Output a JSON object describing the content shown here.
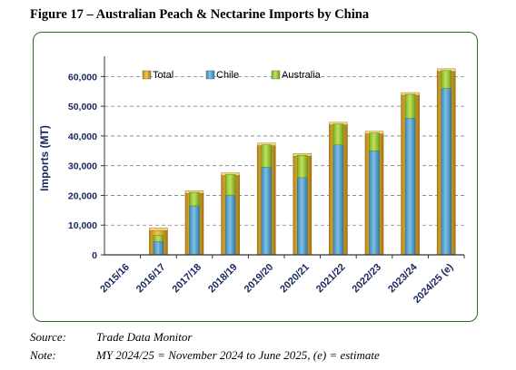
{
  "title": "Figure 17 – Australian Peach & Nectarine Imports by China",
  "footnotes": {
    "source_label": "Source:",
    "source_text": "Trade Data Monitor",
    "note_label": "Note:",
    "note_text": "MY 2024/25 = November 2024 to June 2025, (e) = estimate"
  },
  "colors": {
    "total": "#dca92b",
    "chile": "#56a3cf",
    "australia": "#9ccc3a",
    "frame": "#2e6b24",
    "grid": "#7d7d7d",
    "axis_text": "#1a2760"
  },
  "chart_data": {
    "type": "bar",
    "categories": [
      "2015/16",
      "2016/17",
      "2017/18",
      "2018/19",
      "2019/20",
      "2020/21",
      "2021/22",
      "2022/23",
      "2023/24",
      "2024/25 (e)"
    ],
    "series": [
      {
        "name": "Total",
        "values": [
          0,
          8500,
          21000,
          27000,
          37000,
          33500,
          44000,
          41000,
          54000,
          62000
        ]
      },
      {
        "name": "Chile",
        "values": [
          0,
          4500,
          16500,
          20000,
          29500,
          26000,
          37000,
          35000,
          46000,
          56000
        ]
      },
      {
        "name": "Australia",
        "values": [
          0,
          2000,
          4500,
          7000,
          7500,
          7500,
          7000,
          6000,
          8000,
          6000
        ]
      }
    ],
    "xlabel": "",
    "ylabel": "Imports (MT)",
    "yticks": [
      "0",
      "10,000",
      "20,000",
      "30,000",
      "40,000",
      "50,000",
      "60,000"
    ],
    "ylim": [
      0,
      65000
    ],
    "grid": true,
    "legend_position": "top"
  }
}
